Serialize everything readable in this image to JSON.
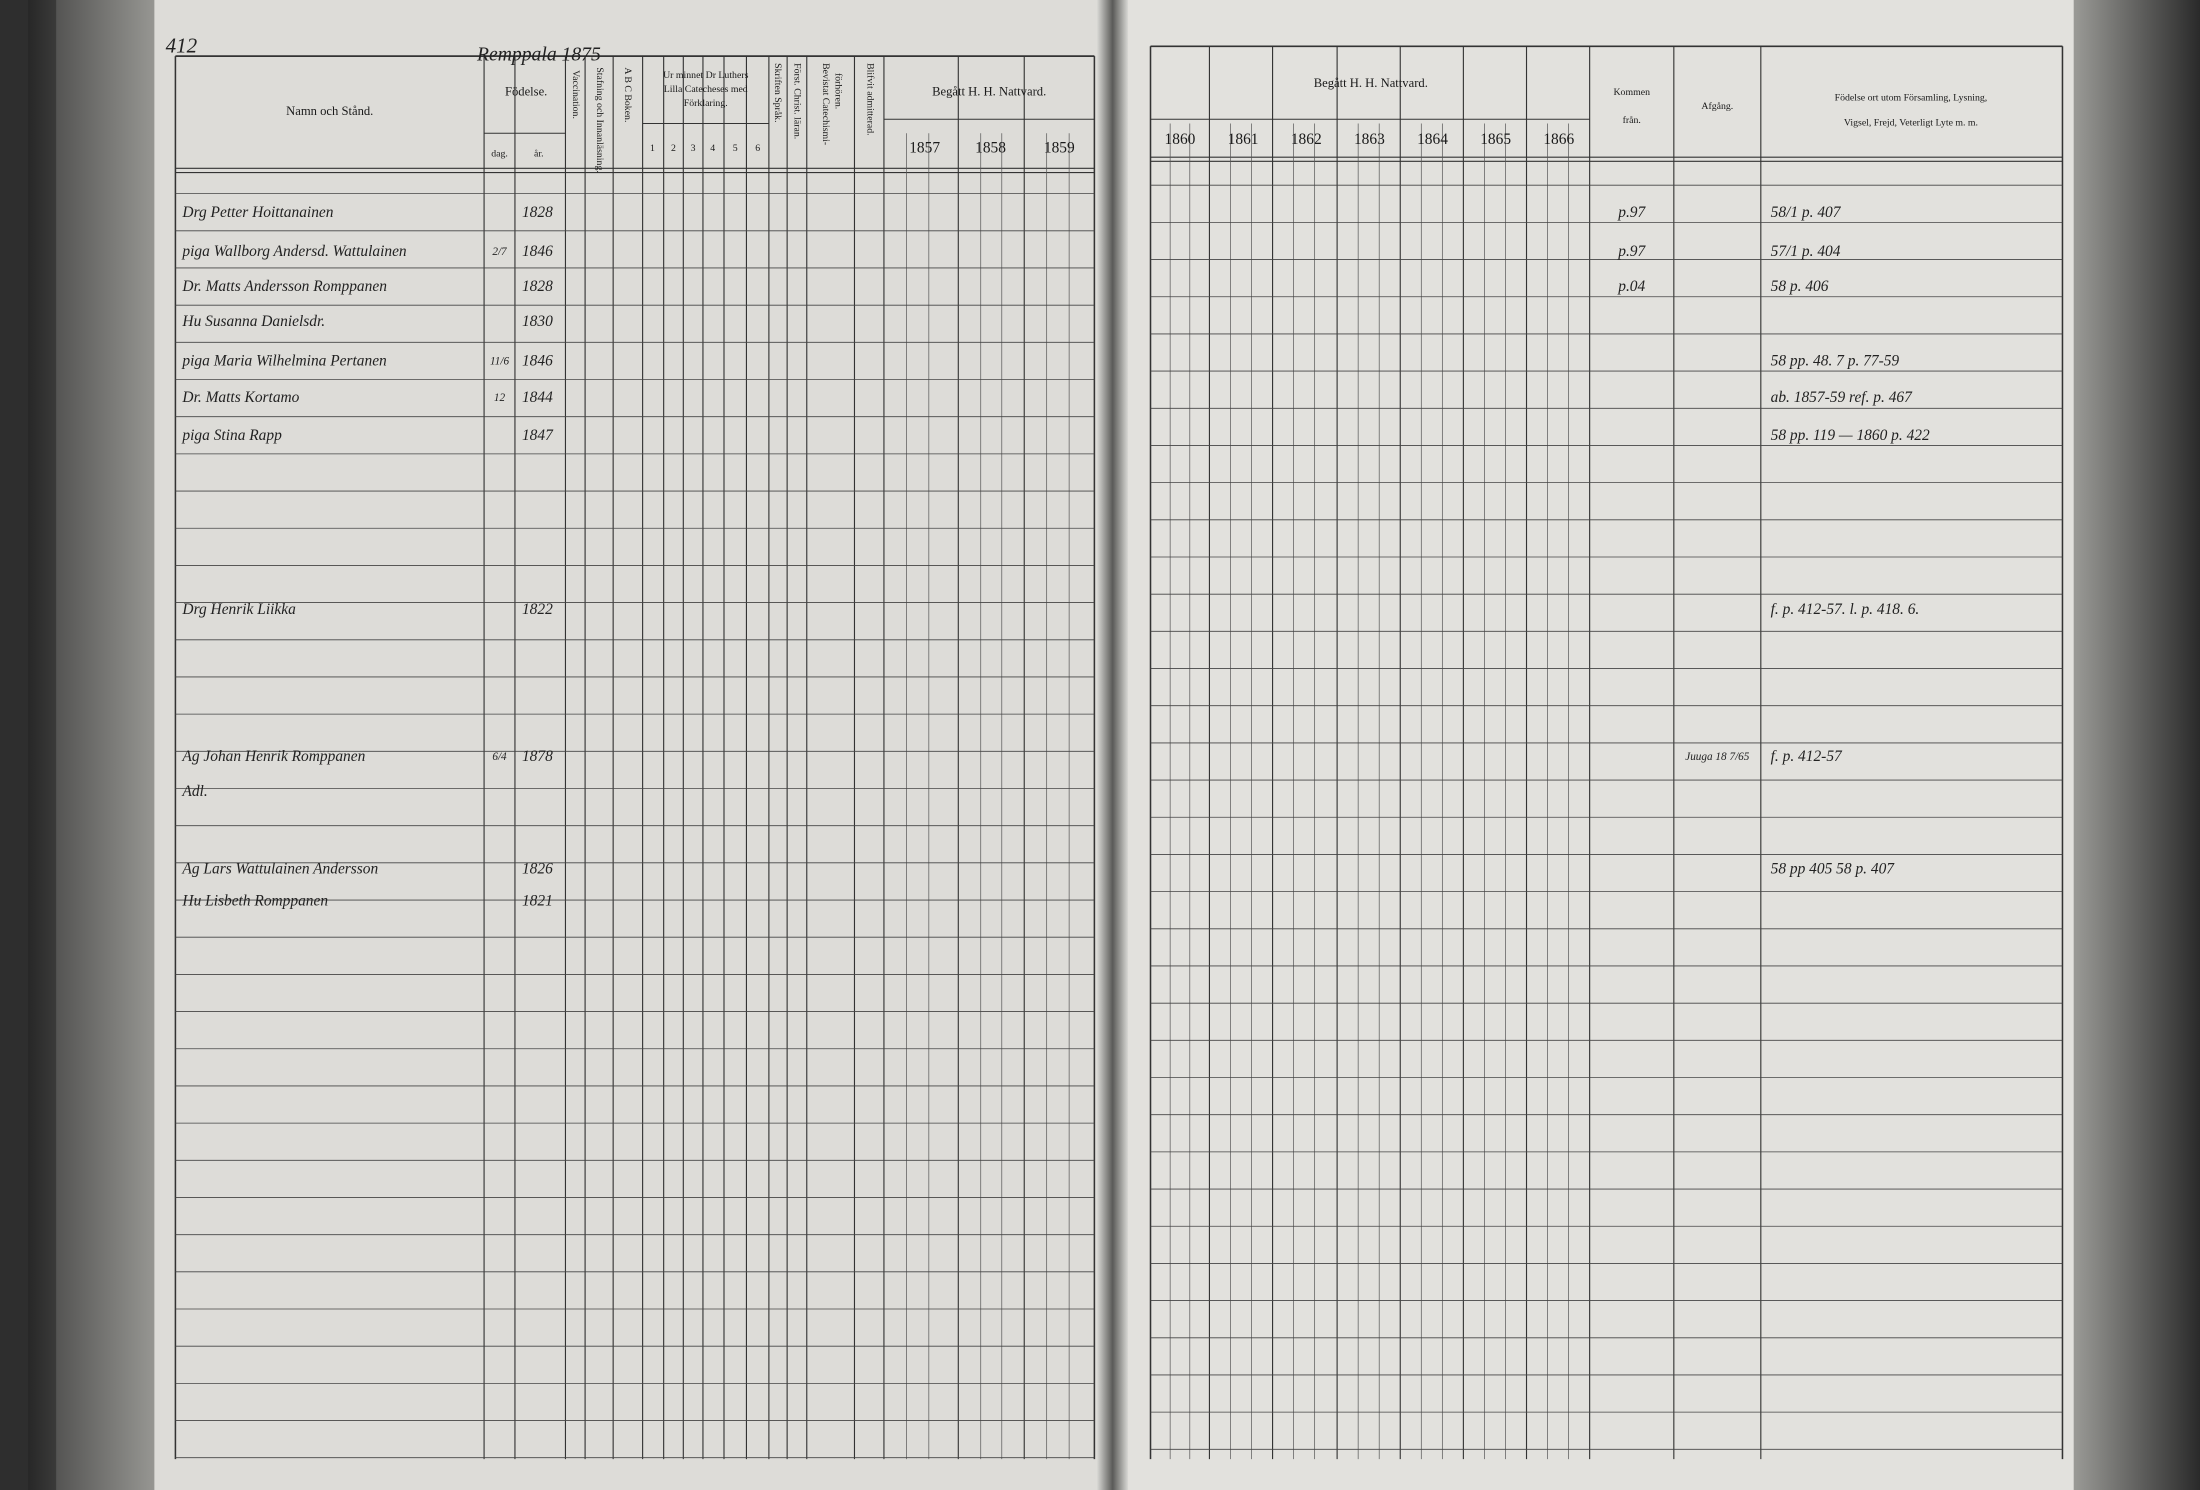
{
  "left_page": {
    "page_number": "412",
    "parish": "Remppala 1875",
    "headers": {
      "name": "Namn och Stånd.",
      "birth": "Födelse.",
      "day": "dag.",
      "year": "år.",
      "vaccination": "Vaccination.",
      "spelling": "Stafning och Innanläsning.",
      "abc": "A B C Boken.",
      "catechism": [
        "Ur minnet Dr Luthers",
        "Lilla Catecheses med",
        "Förklaring."
      ],
      "catechism_parts": [
        "1",
        "2",
        "3",
        "4",
        "5",
        "6"
      ],
      "christian": "Först. Christ. läran.",
      "scripture": "Skriften Språk.",
      "hearings": [
        "Bevistat Catechismi-",
        "förhören."
      ],
      "admitted": "Blifvit admitterad.",
      "communion": "Begått H. H. Nattvard.",
      "years": [
        "1857",
        "1858",
        "1859"
      ]
    }
  },
  "right_page": {
    "headers": {
      "communion": "Begått H. H. Nattvard.",
      "years": [
        "1860",
        "1861",
        "1862",
        "1863",
        "1864",
        "1865",
        "1866"
      ],
      "came_from": [
        "Kommen",
        "från."
      ],
      "departure": "Afgång.",
      "notes": [
        "Födelse ort utom Församling, Lysning,",
        "Vigsel, Frejd, Veterligt Lyte m. m."
      ]
    }
  },
  "entries": [
    {
      "name": "Drg Petter Hoittanainen",
      "year": "1828",
      "came_from": "p.97",
      "notes": "58/1 p. 407"
    },
    {
      "name": "piga Wallborg Andersd. Wattulainen",
      "day": "2/7",
      "year": "1846",
      "came_from": "p.97",
      "notes": "57/1 p. 404"
    },
    {
      "name": "Dr. Matts Andersson Romppanen",
      "year": "1828",
      "came_from": "p.04",
      "notes": "58 p. 406"
    },
    {
      "name": "Hu Susanna Danielsdr.",
      "year": "1830"
    },
    {
      "name": "piga Maria Wilhelmina Pertanen",
      "day": "11/6",
      "year": "1846",
      "notes": "58 pp. 48. 7 p. 77-59"
    },
    {
      "name": "Dr. Matts Kortamo",
      "day": "12",
      "year": "1844",
      "notes": "ab. 1857-59 ref. p. 467"
    },
    {
      "name": "piga Stina Rapp",
      "year": "1847",
      "notes": "58 pp. 119 — 1860 p. 422"
    },
    {
      "name": "Drg Henrik Liikka",
      "year": "1822",
      "notes": "f. p. 412-57. l. p. 418. 6."
    },
    {
      "name": "Ag Johan Henrik Romppanen",
      "day": "6/4",
      "year": "1878",
      "departure": "Juuga 18 7/65",
      "notes": "f. p. 412-57"
    },
    {
      "name": "Adl."
    },
    {
      "name": "Ag Lars Wattulainen Andersson",
      "year": "1826",
      "notes": "58 pp 405 58 p. 407"
    },
    {
      "name": "Hu Lisbeth Romppanen",
      "year": "1821"
    }
  ]
}
